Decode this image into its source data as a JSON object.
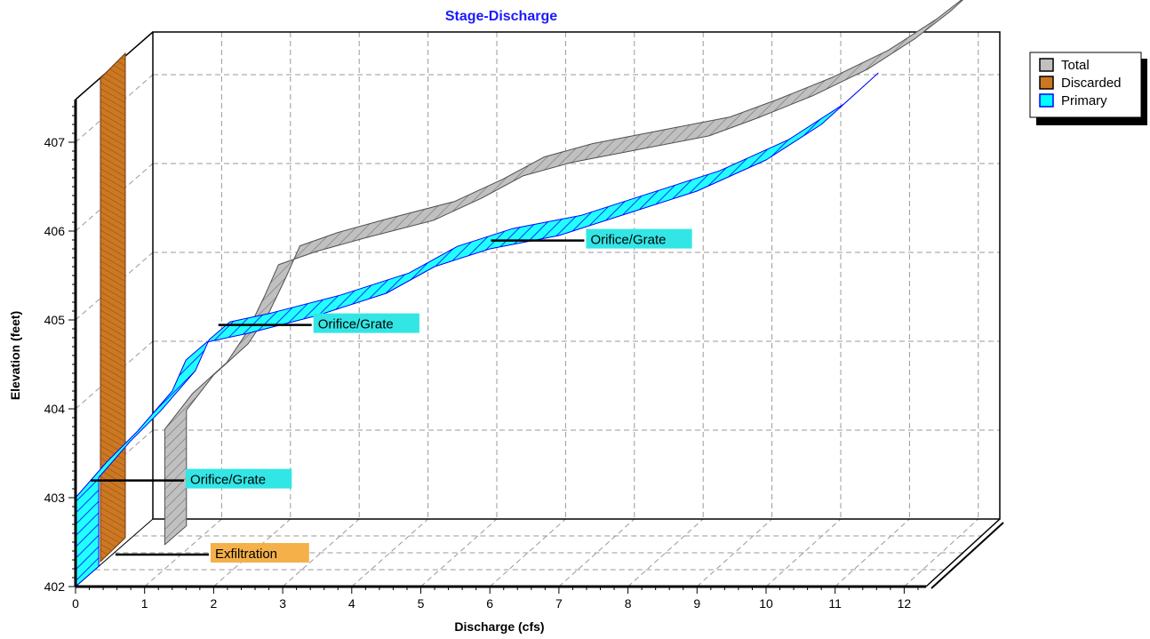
{
  "chart_data": {
    "type": "area",
    "title": "Stage-Discharge",
    "xlabel": "Discharge  (cfs)",
    "ylabel": "Elevation  (feet)",
    "xlim": [
      0,
      12
    ],
    "ylim": [
      402,
      408
    ],
    "x_ticks": [
      "0",
      "1",
      "2",
      "3",
      "4",
      "5",
      "6",
      "7",
      "8",
      "9",
      "10",
      "11",
      "12"
    ],
    "y_ticks": [
      "402",
      "403",
      "404",
      "405",
      "406",
      "407"
    ],
    "grid": true,
    "legend_position": "top-right",
    "series": [
      {
        "name": "Total",
        "color": "#c0c0c0",
        "points": [
          [
            0.6,
            402.4
          ],
          [
            0.6,
            403.3
          ],
          [
            1.0,
            403.7
          ],
          [
            1.5,
            404.05
          ],
          [
            1.8,
            404.4
          ],
          [
            2.05,
            404.8
          ],
          [
            2.25,
            405.15
          ],
          [
            2.8,
            405.3
          ],
          [
            3.5,
            405.45
          ],
          [
            4.5,
            405.65
          ],
          [
            5.2,
            405.9
          ],
          [
            5.8,
            406.15
          ],
          [
            6.5,
            406.3
          ],
          [
            7.5,
            406.45
          ],
          [
            8.5,
            406.6
          ],
          [
            9.2,
            406.8
          ],
          [
            10.0,
            407.05
          ],
          [
            10.8,
            407.35
          ],
          [
            11.5,
            407.7
          ],
          [
            12.0,
            408.0
          ]
        ]
      },
      {
        "name": "Discarded",
        "color": "#cc7722",
        "points": [
          [
            0.35,
            402.4
          ],
          [
            0.35,
            408.0
          ]
        ]
      },
      {
        "name": "Primary",
        "color": "#00ffff",
        "edge": "#0000ff",
        "points": [
          [
            0.0,
            403.0
          ],
          [
            0.45,
            403.4
          ],
          [
            0.9,
            403.75
          ],
          [
            1.4,
            404.2
          ],
          [
            1.6,
            404.55
          ],
          [
            1.9,
            404.75
          ],
          [
            2.5,
            404.85
          ],
          [
            3.5,
            405.05
          ],
          [
            4.5,
            405.3
          ],
          [
            5.2,
            405.6
          ],
          [
            6.0,
            405.8
          ],
          [
            7.0,
            405.95
          ],
          [
            8.0,
            406.2
          ],
          [
            9.0,
            406.45
          ],
          [
            10.0,
            406.8
          ],
          [
            10.8,
            407.2
          ],
          [
            11.3,
            407.55
          ]
        ]
      }
    ],
    "annotations": [
      {
        "text": "Orifice/Grate",
        "x": 0.0,
        "y": 403.0,
        "color": "#33e6e6"
      },
      {
        "text": "Orifice/Grate",
        "x": 1.85,
        "y": 404.75,
        "color": "#33e6e6"
      },
      {
        "text": "Orifice/Grate",
        "x": 5.8,
        "y": 405.7,
        "color": "#33e6e6"
      },
      {
        "text": "Exfiltration",
        "x": 0.3,
        "y": 402.4,
        "color": "#f5b04a"
      }
    ]
  }
}
